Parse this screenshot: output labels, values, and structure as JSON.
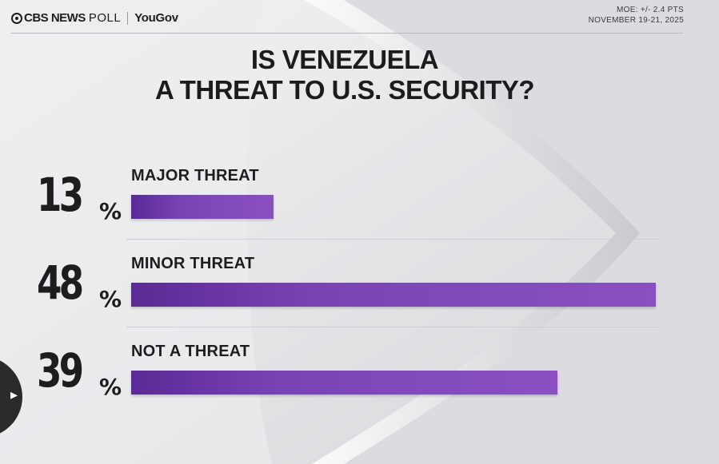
{
  "header": {
    "brand_primary": "CBS NEWS",
    "brand_secondary": "POLL",
    "brand_partner": "YouGov",
    "moe": "MOE: +/- 2.4 PTS",
    "dates": "NOVEMBER 19-21, 2025"
  },
  "chart_data": {
    "type": "bar",
    "title": "IS VENEZUELA A THREAT TO U.S. SECURITY?",
    "title_lines": [
      "IS VENEZUELA",
      "A THREAT TO U.S. SECURITY?"
    ],
    "orientation": "horizontal",
    "unit": "%",
    "categories": [
      "MAJOR THREAT",
      "MINOR THREAT",
      "NOT A THREAT"
    ],
    "values": [
      13,
      48,
      39
    ],
    "xlim": [
      0,
      48
    ],
    "bar_color": "#7a43b4",
    "grid": false
  },
  "overlay": {
    "side_button_icon": "arrow-icon"
  }
}
